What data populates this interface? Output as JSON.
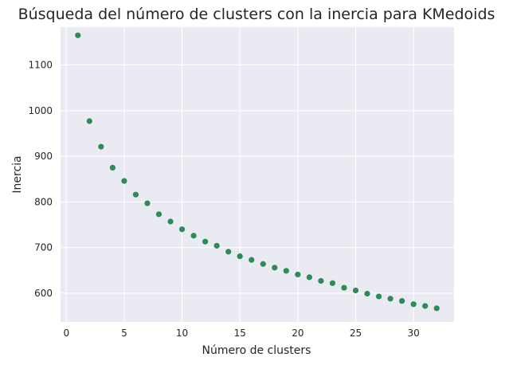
{
  "chart_data": {
    "type": "scatter",
    "title": "Búsqueda del número de clusters con la inercia para KMedoids",
    "xlabel": "Número de clusters",
    "ylabel": "Inercia",
    "xlim": [
      -0.5,
      33.5
    ],
    "ylim": [
      537,
      1183
    ],
    "xticks": [
      0,
      5,
      10,
      15,
      20,
      25,
      30
    ],
    "yticks": [
      600,
      700,
      800,
      900,
      1000,
      1100
    ],
    "grid": true,
    "background": "#eaeaf2",
    "grid_color": "#ffffff",
    "marker_color": "#2e8b57",
    "x": [
      1,
      2,
      3,
      4,
      5,
      6,
      7,
      8,
      9,
      10,
      11,
      12,
      13,
      14,
      15,
      16,
      17,
      18,
      19,
      20,
      21,
      22,
      23,
      24,
      25,
      26,
      27,
      28,
      29,
      30,
      31,
      32
    ],
    "y": [
      1165,
      977,
      921,
      875,
      846,
      816,
      797,
      773,
      757,
      740,
      726,
      713,
      704,
      691,
      681,
      673,
      664,
      656,
      649,
      641,
      635,
      627,
      622,
      612,
      606,
      599,
      593,
      588,
      583,
      576,
      572,
      567
    ]
  }
}
